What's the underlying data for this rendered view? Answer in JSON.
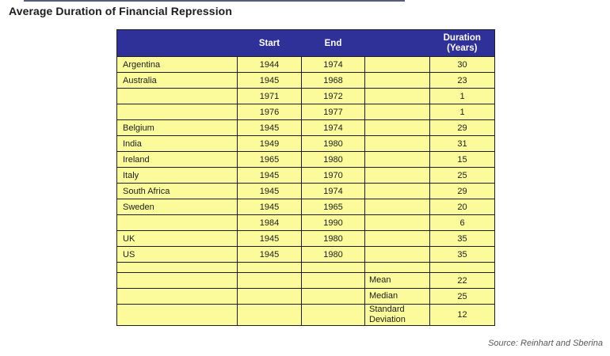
{
  "title": "Average Duration of Financial Repression",
  "source": "Source: Reinhart and Sberina",
  "chart_data": {
    "type": "table",
    "title": "Average Duration of Financial Repression",
    "columns": [
      "",
      "Start",
      "End",
      "",
      "Duration (Years)"
    ],
    "header": {
      "country": "",
      "start": "Start",
      "end": "End",
      "label": "",
      "duration_line1": "Duration",
      "duration_line2": "(Years)"
    },
    "rows": [
      {
        "country": "Argentina",
        "start": "1944",
        "end": "1974",
        "duration": "30"
      },
      {
        "country": "Australia",
        "start": "1945",
        "end": "1968",
        "duration": "23"
      },
      {
        "country": "",
        "start": "1971",
        "end": "1972",
        "duration": "1"
      },
      {
        "country": "",
        "start": "1976",
        "end": "1977",
        "duration": "1"
      },
      {
        "country": "Belgium",
        "start": "1945",
        "end": "1974",
        "duration": "29"
      },
      {
        "country": "India",
        "start": "1949",
        "end": "1980",
        "duration": "31"
      },
      {
        "country": "Ireland",
        "start": "1965",
        "end": "1980",
        "duration": "15"
      },
      {
        "country": "Italy",
        "start": "1945",
        "end": "1970",
        "duration": "25"
      },
      {
        "country": "South Africa",
        "start": "1945",
        "end": "1974",
        "duration": "29"
      },
      {
        "country": "Sweden",
        "start": "1945",
        "end": "1965",
        "duration": "20"
      },
      {
        "country": "",
        "start": "1984",
        "end": "1990",
        "duration": "6"
      },
      {
        "country": "UK",
        "start": "1945",
        "end": "1980",
        "duration": "35"
      },
      {
        "country": "US",
        "start": "1945",
        "end": "1980",
        "duration": "35"
      }
    ],
    "summary": [
      {
        "label": "Mean",
        "value": "22"
      },
      {
        "label": "Median",
        "value": "25"
      },
      {
        "label": "Standard Deviation",
        "value": "12"
      }
    ]
  },
  "colors": {
    "header_bg": "#2f3199",
    "header_text": "#ffffff",
    "cell_bg": "#fbfb9b",
    "border": "#1f1f1f",
    "title_text": "#1c1c1c",
    "source_text": "#595959"
  }
}
